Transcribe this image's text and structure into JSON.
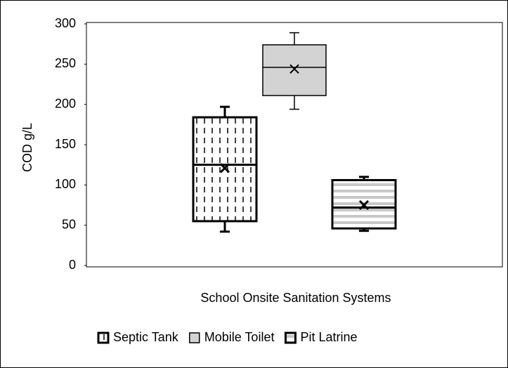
{
  "chart_data": {
    "type": "box",
    "x_label": "School Onsite Sanitation Systems",
    "y_label": "COD g/L",
    "ylim": [
      0,
      300
    ],
    "yticks": [
      0,
      50,
      100,
      150,
      200,
      250,
      300
    ],
    "legend": "bottom",
    "series": [
      {
        "name": "Septic Tank",
        "color": "#ffffff",
        "pattern": "vertical-dash",
        "line_width": 3,
        "whisker_low": 42,
        "q1": 55,
        "median": 125,
        "q3": 184,
        "whisker_high": 197,
        "mean": 121
      },
      {
        "name": "Mobile Toilet",
        "color": "#d3d3d3",
        "pattern": "none",
        "line_width": 1.5,
        "whisker_low": 194,
        "q1": 211,
        "median": 246,
        "q3": 274,
        "whisker_high": 289,
        "mean": 244
      },
      {
        "name": "Pit Latrine",
        "color": "#ffffff",
        "pattern": "horizontal-stripe",
        "line_width": 3,
        "whisker_low": 43,
        "q1": 46,
        "median": 72,
        "q3": 106,
        "whisker_high": 110,
        "mean": 75
      }
    ]
  }
}
